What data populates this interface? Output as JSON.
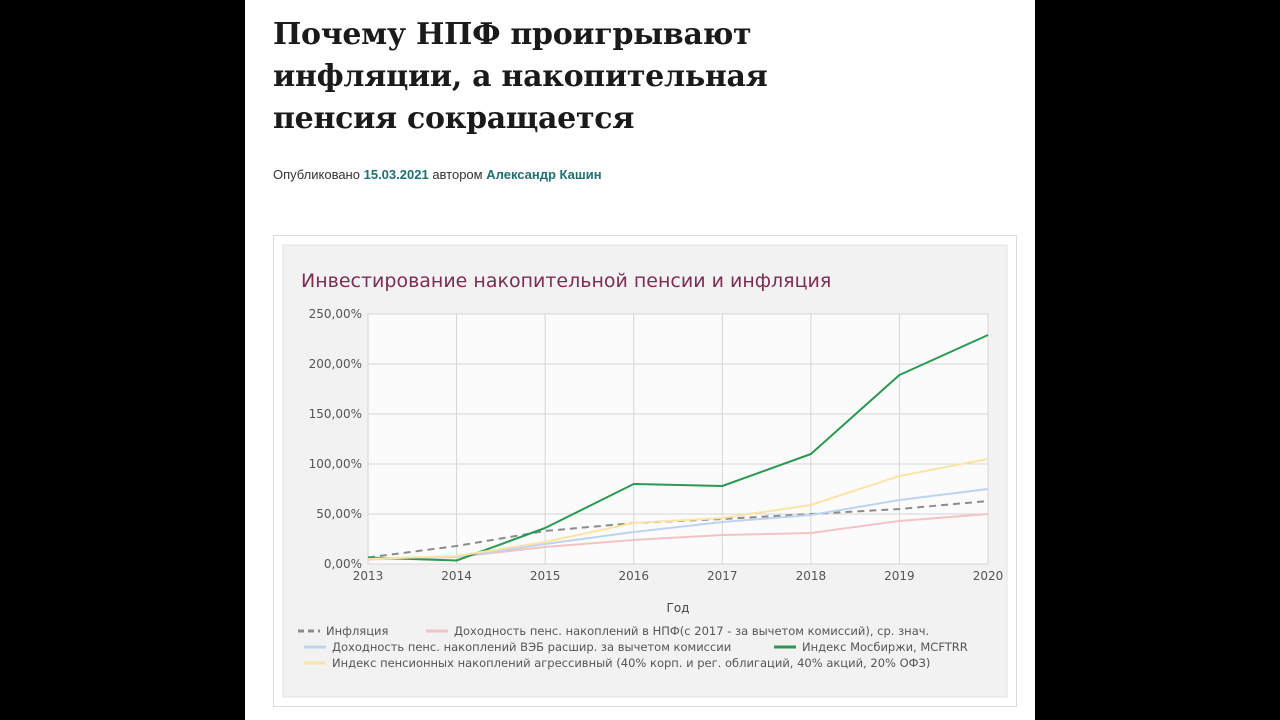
{
  "article": {
    "title_lines": [
      "Почему НПФ проигрывают",
      "инфляции, а накопительная",
      "пенсия сокращается"
    ],
    "published_label": "Опубликовано",
    "date": "15.03.2021",
    "author_label": "автором",
    "author": "Александр Кашин"
  },
  "chart_data": {
    "type": "line",
    "title": "Инвестирование накопительной пенсии и инфляция",
    "xlabel": "Год",
    "ylabel": "",
    "x": [
      2013,
      2014,
      2015,
      2016,
      2017,
      2018,
      2019,
      2020
    ],
    "ylim": [
      0,
      250
    ],
    "yticks": [
      "0,00%",
      "50,00%",
      "100,00%",
      "150,00%",
      "200,00%",
      "250,00%"
    ],
    "grid": true,
    "legend_position": "bottom",
    "series": [
      {
        "name": "Инфляция",
        "color": "#8c8c8c",
        "dash": true,
        "values": [
          6.5,
          18,
          33,
          41,
          45,
          50,
          55,
          63
        ]
      },
      {
        "name": "Доходность пенс. накоплений в НПФ(с 2017 - за вычетом комиссий), ср. знач.",
        "color": "#f4c3c3",
        "dash": false,
        "values": [
          4.5,
          7,
          17,
          24,
          29,
          31,
          43,
          50
        ]
      },
      {
        "name": "Доходность пенс. накоплений ВЭБ расшир. за вычетом комиссии",
        "color": "#bcd4f0",
        "dash": false,
        "values": [
          5,
          7,
          20,
          32,
          42,
          49,
          64,
          75
        ]
      },
      {
        "name": "Индекс Мосбиржи, MCFTRR",
        "color": "#2a9a52",
        "dash": false,
        "values": [
          6.5,
          3.5,
          36,
          80,
          78,
          110,
          189,
          229
        ]
      },
      {
        "name": "Индекс пенсионных накоплений агрессивный (40% корп. и рег. облигаций, 40% акций, 20% ОФЗ)",
        "color": "#fce3a8",
        "dash": false,
        "values": [
          5,
          8,
          22,
          41,
          46,
          59,
          88,
          105
        ]
      }
    ]
  }
}
